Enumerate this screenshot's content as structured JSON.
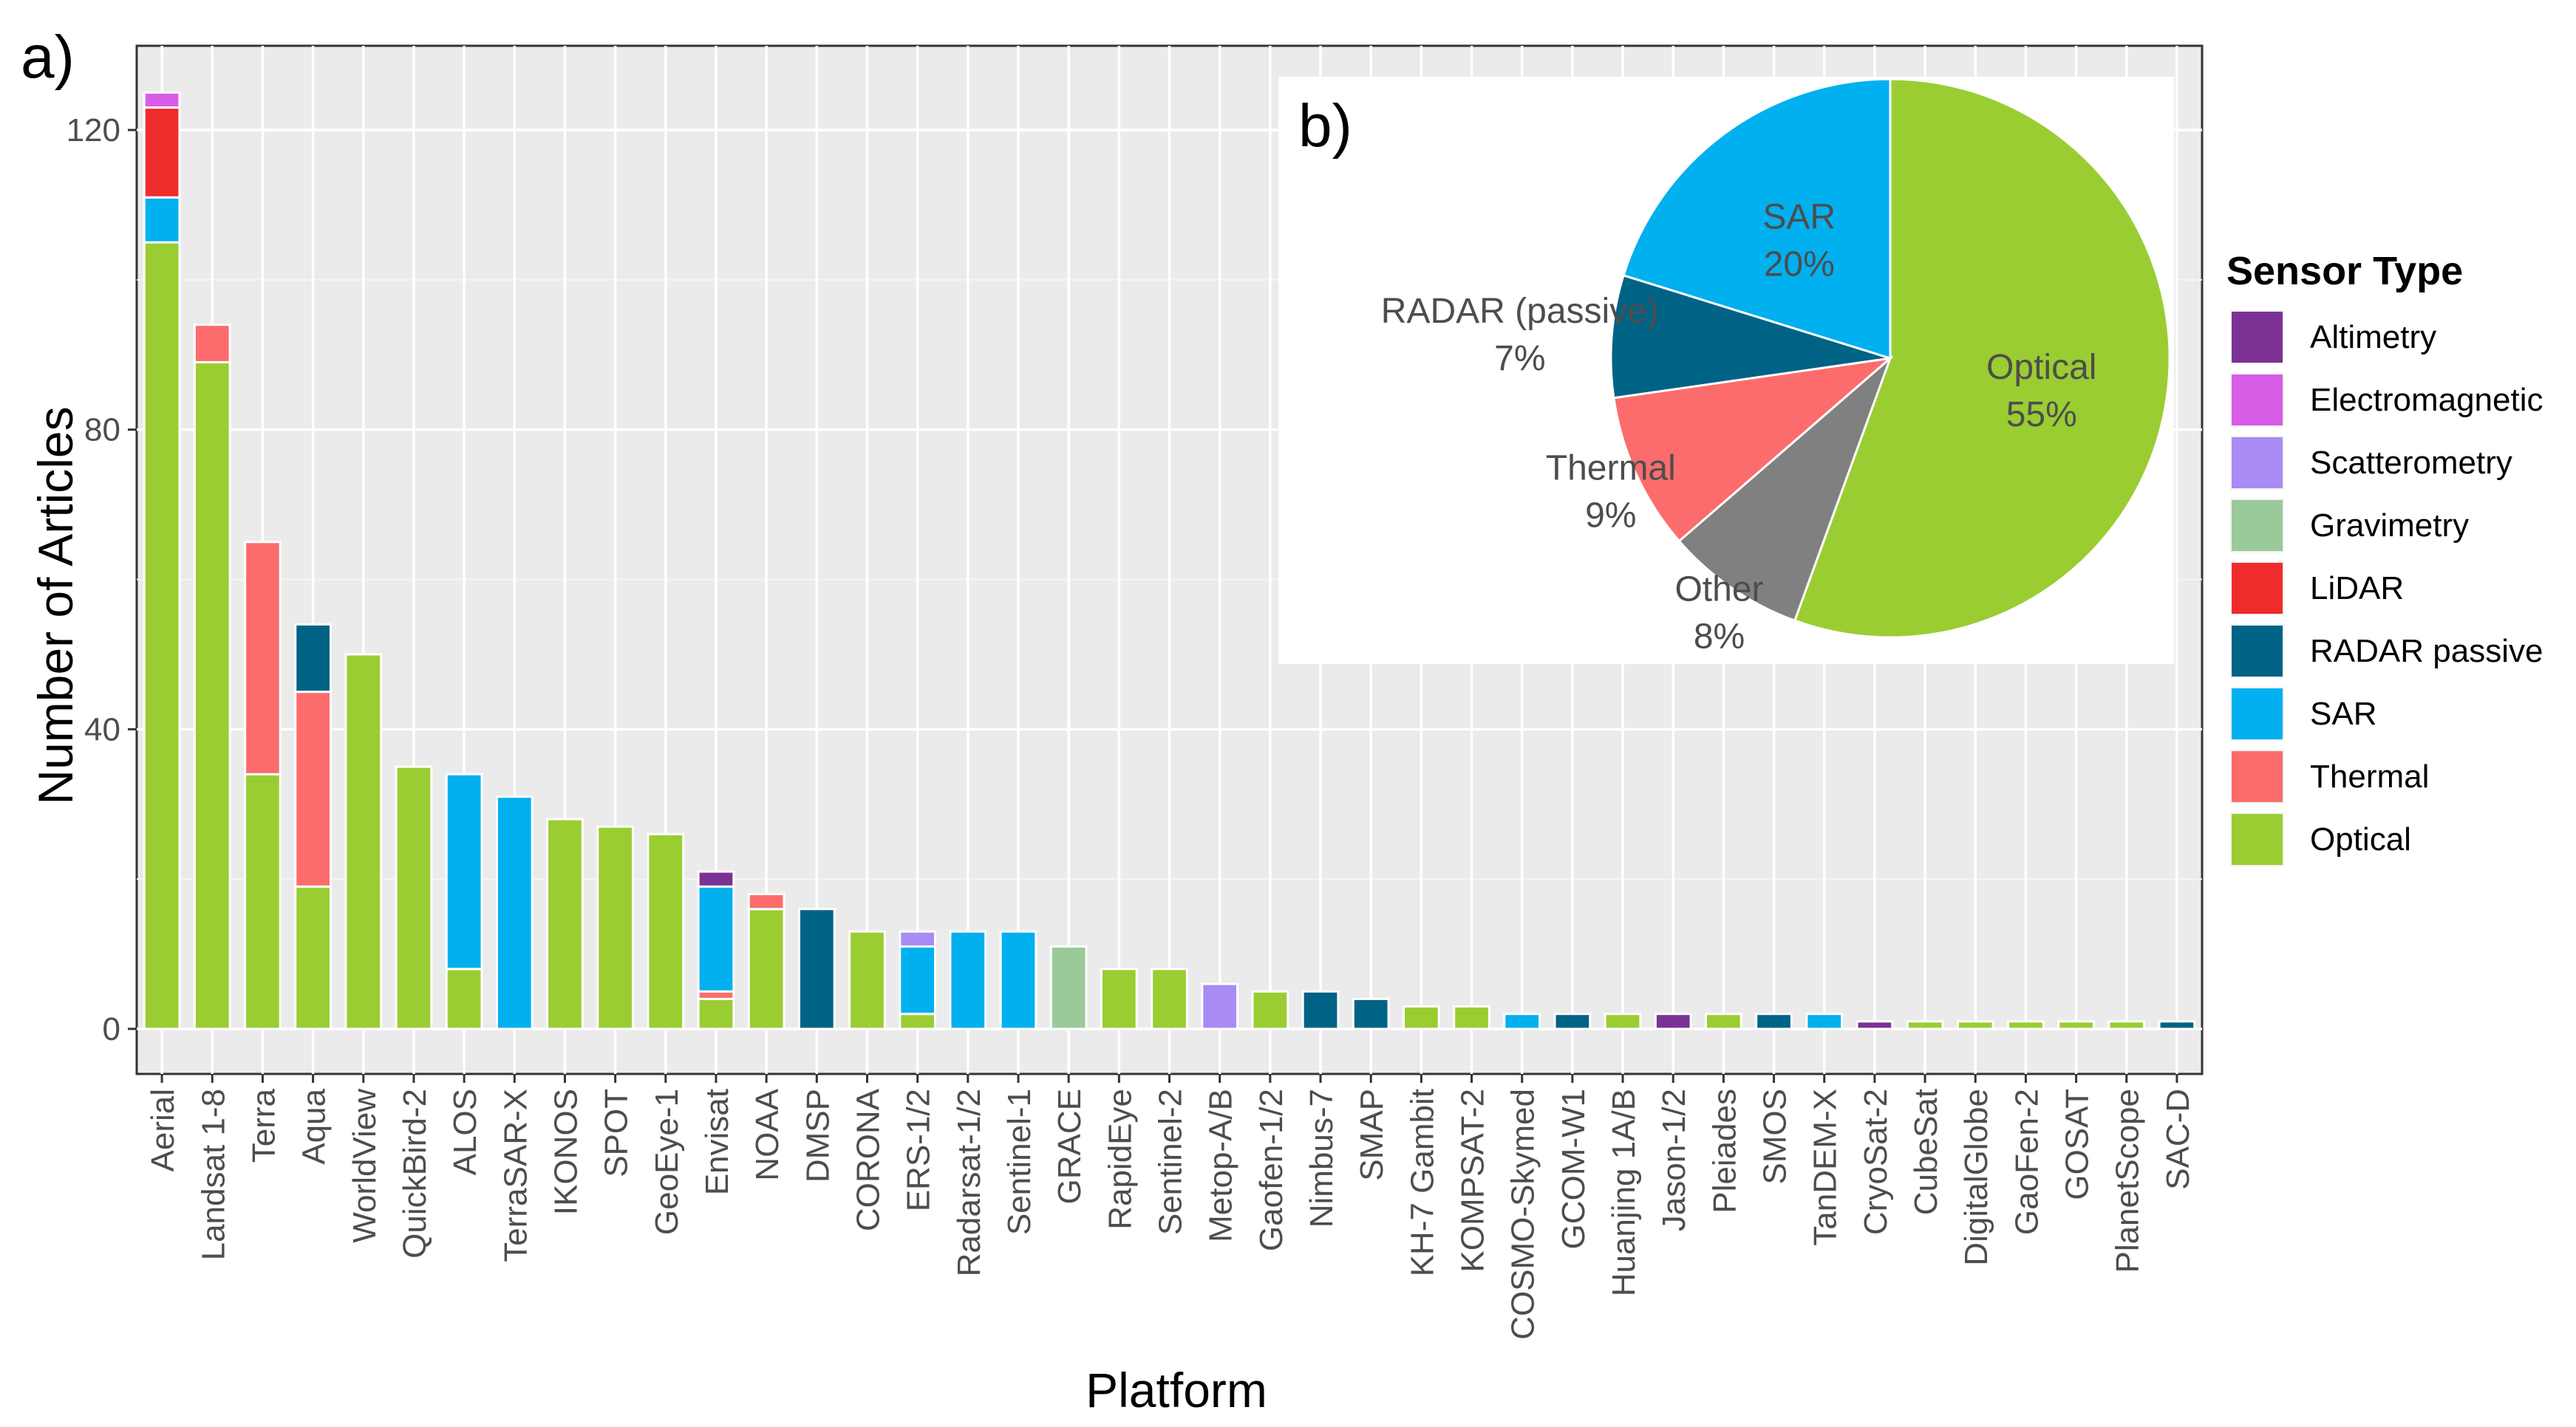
{
  "panel_a_label": "a)",
  "panel_b_label": "b)",
  "legend": {
    "title": "Sensor Type",
    "items": [
      {
        "key": "altimetry",
        "label": "Altimetry",
        "color": "#7b3294"
      },
      {
        "key": "electromagnetic",
        "label": "Electromagnetic",
        "color": "#d75ce6"
      },
      {
        "key": "scatterometry",
        "label": "Scatterometry",
        "color": "#a98bf5"
      },
      {
        "key": "gravimetry",
        "label": "Gravimetry",
        "color": "#9ac99a"
      },
      {
        "key": "lidar",
        "label": "LiDAR",
        "color": "#ee2c2c"
      },
      {
        "key": "radar_passive",
        "label": "RADAR passive",
        "color": "#006385"
      },
      {
        "key": "sar",
        "label": "SAR",
        "color": "#00b0ef"
      },
      {
        "key": "thermal",
        "label": "Thermal",
        "color": "#fc6c6c"
      },
      {
        "key": "optical",
        "label": "Optical",
        "color": "#9acd32"
      }
    ]
  },
  "chart_data": [
    {
      "type": "bar",
      "stacked": true,
      "title": "",
      "xlabel": "Platform",
      "ylabel": "Number of Articles",
      "ylim": [
        0,
        128
      ],
      "yticks": [
        0,
        40,
        80,
        120
      ],
      "grid": true,
      "stack_order_bottom_to_top": [
        "optical",
        "thermal",
        "sar",
        "radar_passive",
        "lidar",
        "gravimetry",
        "scatterometry",
        "electromagnetic",
        "altimetry"
      ],
      "categories": [
        "Aerial",
        "Landsat 1-8",
        "Terra",
        "Aqua",
        "WorldView",
        "QuickBird-2",
        "ALOS",
        "TerraSAR-X",
        "IKONOS",
        "SPOT",
        "GeoEye-1",
        "Envisat",
        "NOAA",
        "DMSP",
        "CORONA",
        "ERS-1/2",
        "Radarsat-1/2",
        "Sentinel-1",
        "GRACE",
        "RapidEye",
        "Sentinel-2",
        "Metop-A/B",
        "Gaofen-1/2",
        "Nimbus-7",
        "SMAP",
        "KH-7 Gambit",
        "KOMPSAT-2",
        "COSMO-Skymed",
        "GCOM-W1",
        "Huanjing 1A/B",
        "Jason-1/2",
        "Pleiades",
        "SMOS",
        "TanDEM-X",
        "CryoSat-2",
        "CubeSat",
        "DigitalGlobe",
        "GaoFen-2",
        "GOSAT",
        "PlanetScope",
        "SAC-D"
      ],
      "series": [
        {
          "name": "Optical",
          "key": "optical",
          "values": [
            105,
            89,
            34,
            19,
            50,
            35,
            8,
            0,
            28,
            27,
            26,
            4,
            16,
            0,
            13,
            2,
            0,
            0,
            0,
            8,
            8,
            0,
            5,
            0,
            0,
            3,
            3,
            0,
            0,
            2,
            0,
            2,
            0,
            0,
            0,
            1,
            1,
            1,
            1,
            1,
            0
          ]
        },
        {
          "name": "Thermal",
          "key": "thermal",
          "values": [
            0,
            5,
            31,
            26,
            0,
            0,
            0,
            0,
            0,
            0,
            0,
            1,
            2,
            0,
            0,
            0,
            0,
            0,
            0,
            0,
            0,
            0,
            0,
            0,
            0,
            0,
            0,
            0,
            0,
            0,
            0,
            0,
            0,
            0,
            0,
            0,
            0,
            0,
            0,
            0,
            0
          ]
        },
        {
          "name": "SAR",
          "key": "sar",
          "values": [
            6,
            0,
            0,
            0,
            0,
            0,
            26,
            31,
            0,
            0,
            0,
            14,
            0,
            0,
            0,
            9,
            13,
            13,
            0,
            0,
            0,
            0,
            0,
            0,
            0,
            0,
            0,
            2,
            0,
            0,
            0,
            0,
            0,
            2,
            0,
            0,
            0,
            0,
            0,
            0,
            0
          ]
        },
        {
          "name": "RADAR passive",
          "key": "radar_passive",
          "values": [
            0,
            0,
            0,
            9,
            0,
            0,
            0,
            0,
            0,
            0,
            0,
            0,
            0,
            16,
            0,
            0,
            0,
            0,
            0,
            0,
            0,
            0,
            0,
            5,
            4,
            0,
            0,
            0,
            2,
            0,
            0,
            0,
            2,
            0,
            0,
            0,
            0,
            0,
            0,
            0,
            1
          ]
        },
        {
          "name": "LiDAR",
          "key": "lidar",
          "values": [
            12,
            0,
            0,
            0,
            0,
            0,
            0,
            0,
            0,
            0,
            0,
            0,
            0,
            0,
            0,
            0,
            0,
            0,
            0,
            0,
            0,
            0,
            0,
            0,
            0,
            0,
            0,
            0,
            0,
            0,
            0,
            0,
            0,
            0,
            0,
            0,
            0,
            0,
            0,
            0,
            0
          ]
        },
        {
          "name": "Gravimetry",
          "key": "gravimetry",
          "values": [
            0,
            0,
            0,
            0,
            0,
            0,
            0,
            0,
            0,
            0,
            0,
            0,
            0,
            0,
            0,
            0,
            0,
            0,
            11,
            0,
            0,
            0,
            0,
            0,
            0,
            0,
            0,
            0,
            0,
            0,
            0,
            0,
            0,
            0,
            0,
            0,
            0,
            0,
            0,
            0,
            0
          ]
        },
        {
          "name": "Scatterometry",
          "key": "scatterometry",
          "values": [
            0,
            0,
            0,
            0,
            0,
            0,
            0,
            0,
            0,
            0,
            0,
            0,
            0,
            0,
            0,
            2,
            0,
            0,
            0,
            0,
            0,
            6,
            0,
            0,
            0,
            0,
            0,
            0,
            0,
            0,
            0,
            0,
            0,
            0,
            0,
            0,
            0,
            0,
            0,
            0,
            0
          ]
        },
        {
          "name": "Electromagnetic",
          "key": "electromagnetic",
          "values": [
            2,
            0,
            0,
            0,
            0,
            0,
            0,
            0,
            0,
            0,
            0,
            0,
            0,
            0,
            0,
            0,
            0,
            0,
            0,
            0,
            0,
            0,
            0,
            0,
            0,
            0,
            0,
            0,
            0,
            0,
            0,
            0,
            0,
            0,
            0,
            0,
            0,
            0,
            0,
            0,
            0
          ]
        },
        {
          "name": "Altimetry",
          "key": "altimetry",
          "values": [
            0,
            0,
            0,
            0,
            0,
            0,
            0,
            0,
            0,
            0,
            0,
            2,
            0,
            0,
            0,
            0,
            0,
            0,
            0,
            0,
            0,
            0,
            0,
            0,
            0,
            0,
            0,
            0,
            0,
            0,
            2,
            0,
            0,
            0,
            1,
            0,
            0,
            0,
            0,
            0,
            0
          ]
        }
      ]
    },
    {
      "type": "pie",
      "title": "",
      "start_angle_deg": 0,
      "direction": "clockwise",
      "slices": [
        {
          "label": "Optical",
          "key": "optical",
          "value": 55,
          "text": "Optical",
          "pct": "55%"
        },
        {
          "label": "Other",
          "key": "other",
          "value": 8,
          "text": "Other",
          "pct": "8%",
          "color": "#808080"
        },
        {
          "label": "Thermal",
          "key": "thermal",
          "value": 9,
          "text": "Thermal",
          "pct": "9%"
        },
        {
          "label": "RADAR (passive)",
          "key": "radar_passive",
          "value": 7,
          "text": "RADAR (passive)",
          "pct": "7%"
        },
        {
          "label": "SAR",
          "key": "sar",
          "value": 20,
          "text": "SAR",
          "pct": "20%"
        }
      ]
    }
  ]
}
